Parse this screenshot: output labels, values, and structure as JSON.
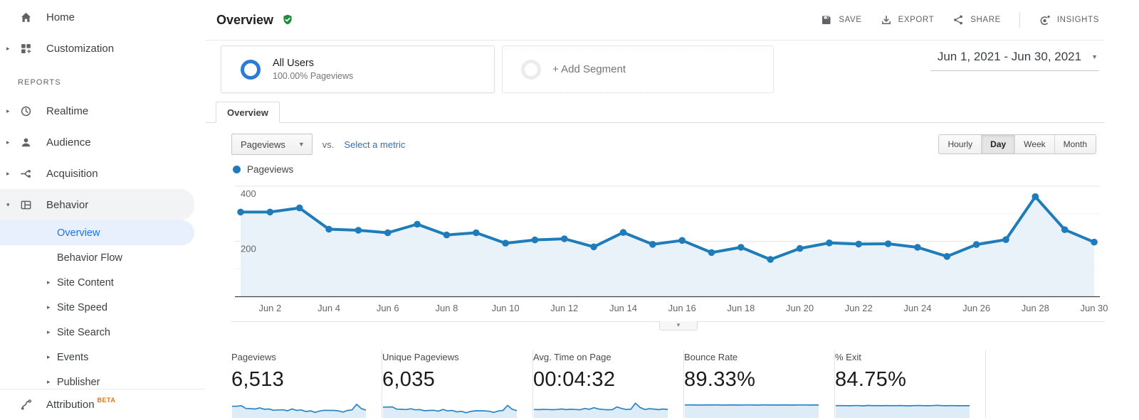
{
  "header": {
    "title": "Overview",
    "actions": [
      {
        "name": "save",
        "label": "SAVE",
        "icon": "save-icon"
      },
      {
        "name": "export",
        "label": "EXPORT",
        "icon": "export-icon"
      },
      {
        "name": "share",
        "label": "SHARE",
        "icon": "share-icon"
      },
      {
        "name": "insights",
        "label": "INSIGHTS",
        "icon": "insights-icon",
        "divider_before": true
      }
    ]
  },
  "sidebar": {
    "top_items": [
      {
        "name": "home",
        "label": "Home",
        "icon": "home-icon"
      },
      {
        "name": "customization",
        "label": "Customization",
        "icon": "customization-icon",
        "arrow": "right"
      }
    ],
    "reports_label": "REPORTS",
    "report_items": [
      {
        "name": "realtime",
        "label": "Realtime",
        "icon": "realtime-icon",
        "arrow": "right"
      },
      {
        "name": "audience",
        "label": "Audience",
        "icon": "audience-icon",
        "arrow": "right"
      },
      {
        "name": "acquisition",
        "label": "Acquisition",
        "icon": "acquisition-icon",
        "arrow": "right"
      },
      {
        "name": "behavior",
        "label": "Behavior",
        "icon": "behavior-icon",
        "arrow": "down",
        "active": true
      }
    ],
    "behavior_children": [
      {
        "name": "overview",
        "label": "Overview",
        "selected": true
      },
      {
        "name": "behavior-flow",
        "label": "Behavior Flow"
      },
      {
        "name": "site-content",
        "label": "Site Content",
        "arrow": "right"
      },
      {
        "name": "site-speed",
        "label": "Site Speed",
        "arrow": "right"
      },
      {
        "name": "site-search",
        "label": "Site Search",
        "arrow": "right"
      },
      {
        "name": "events",
        "label": "Events",
        "arrow": "right"
      },
      {
        "name": "publisher",
        "label": "Publisher",
        "arrow": "right"
      }
    ],
    "attribution": {
      "label": "Attribution",
      "badge": "BETA",
      "icon": "attribution-icon"
    }
  },
  "segments": {
    "all_users": {
      "title": "All Users",
      "subtitle": "100.00% Pageviews"
    },
    "add_label": "+ Add Segment"
  },
  "date_range": "Jun 1, 2021 - Jun 30, 2021",
  "tabs": [
    "Overview"
  ],
  "controls": {
    "metric_dropdown": "Pageviews",
    "vs_label": "vs.",
    "select_metric_label": "Select a metric",
    "granularity": [
      "Hourly",
      "Day",
      "Week",
      "Month"
    ],
    "selected_granularity": "Day"
  },
  "chart_data": {
    "type": "line",
    "legend": "Pageviews",
    "x": [
      "Jun 1",
      "Jun 2",
      "Jun 3",
      "Jun 4",
      "Jun 5",
      "Jun 6",
      "Jun 7",
      "Jun 8",
      "Jun 9",
      "Jun 10",
      "Jun 11",
      "Jun 12",
      "Jun 13",
      "Jun 14",
      "Jun 15",
      "Jun 16",
      "Jun 17",
      "Jun 18",
      "Jun 19",
      "Jun 20",
      "Jun 21",
      "Jun 22",
      "Jun 23",
      "Jun 24",
      "Jun 25",
      "Jun 26",
      "Jun 27",
      "Jun 28",
      "Jun 29",
      "Jun 30"
    ],
    "x_tick_labels": [
      "Jun 2",
      "Jun 4",
      "Jun 6",
      "Jun 8",
      "Jun 10",
      "Jun 12",
      "Jun 14",
      "Jun 16",
      "Jun 18",
      "Jun 20",
      "Jun 22",
      "Jun 24",
      "Jun 26",
      "Jun 28",
      "Jun 30"
    ],
    "series": [
      {
        "name": "Pageviews",
        "values": [
          306,
          306,
          321,
          244,
          240,
          231,
          262,
          223,
          231,
          193,
          205,
          209,
          180,
          232,
          189,
          203,
          159,
          178,
          134,
          174,
          194,
          190,
          191,
          178,
          145,
          188,
          206,
          362,
          242,
          197
        ]
      }
    ],
    "ylim": [
      0,
      423
    ],
    "y_ticks": [
      200,
      400
    ],
    "grid": true,
    "legend_position": "top-left"
  },
  "metrics": [
    {
      "label": "Pageviews",
      "value": "6,513",
      "spark": "pageviews"
    },
    {
      "label": "Unique Pageviews",
      "value": "6,035",
      "spark": "unique"
    },
    {
      "label": "Avg. Time on Page",
      "value": "00:04:32",
      "spark": "avgtime"
    },
    {
      "label": "Bounce Rate",
      "value": "89.33%",
      "spark": "bounce"
    },
    {
      "label": "% Exit",
      "value": "84.75%",
      "spark": "exit"
    }
  ],
  "sparklines": {
    "pageviews": {
      "ylim": [
        0,
        460
      ],
      "values": [
        306,
        306,
        321,
        244,
        240,
        231,
        262,
        223,
        231,
        193,
        205,
        209,
        180,
        232,
        189,
        203,
        159,
        178,
        134,
        174,
        194,
        190,
        191,
        178,
        145,
        188,
        206,
        362,
        242,
        197
      ]
    },
    "unique": {
      "ylim": [
        0,
        460
      ],
      "values": [
        285,
        284,
        290,
        227,
        223,
        215,
        236,
        207,
        215,
        180,
        190,
        194,
        167,
        216,
        176,
        189,
        148,
        166,
        125,
        162,
        180,
        177,
        178,
        166,
        135,
        175,
        191,
        330,
        225,
        183
      ]
    },
    "avgtime": {
      "ylim": [
        0,
        320
      ],
      "values": [
        150,
        148,
        152,
        150,
        146,
        150,
        160,
        148,
        155,
        150,
        145,
        170,
        155,
        185,
        160,
        150,
        145,
        148,
        200,
        170,
        150,
        155,
        272,
        190,
        150,
        165,
        158,
        148,
        160,
        152
      ]
    },
    "bounce": {
      "ylim": [
        0,
        120
      ],
      "values": [
        89.5,
        90.1,
        89.2,
        88.6,
        90,
        89.4,
        89,
        90.2,
        88.5,
        89.1,
        90,
        89.3,
        88.8,
        89.6,
        90,
        89,
        88.4,
        90.1,
        89.3,
        89,
        88.7,
        90,
        89.4,
        88.6,
        89.2,
        90,
        89.5,
        88.8,
        89.3,
        89.1
      ]
    },
    "exit": {
      "ylim": [
        0,
        120
      ],
      "values": [
        84,
        85.2,
        84.5,
        83.5,
        85,
        84.8,
        83,
        86,
        84.2,
        84.9,
        83.8,
        85.2,
        84.1,
        84.6,
        85.5,
        84,
        83.2,
        84.8,
        85.8,
        84.3,
        83.9,
        85.1,
        87,
        84.5,
        83.8,
        84.9,
        84.2,
        83.6,
        84.4,
        84.1
      ]
    }
  },
  "colors": {
    "line_blue": "#1e7cba",
    "area_fill": "#e9f2f9",
    "spark_fill": "#ddecf7",
    "link_blue": "#2f71b3",
    "nav_selected_blue": "#1a73e8",
    "beta_orange": "#e8710a",
    "badge_green": "#1e8e3e",
    "segment_ring_blue": "#2b7bd9"
  }
}
